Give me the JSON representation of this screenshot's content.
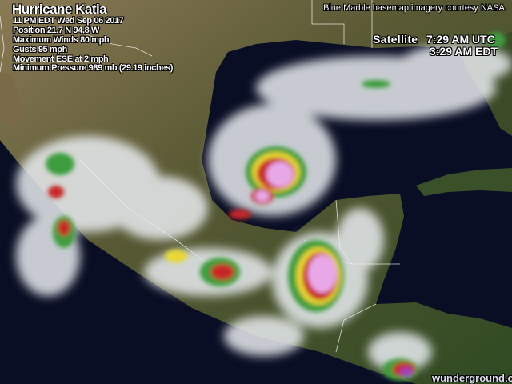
{
  "storm": {
    "title": "Hurricane Katia",
    "advisory_time": "11 PM EDT Wed Sep 06 2017",
    "position": "Position 21.7 N  94.8 W",
    "max_winds": "Maximum Winds  80 mph",
    "gusts": " Gusts  95 mph",
    "movement": "Movement ESE at 2 mph",
    "pressure": "Minimum Pressure 989 mb  (29.19 inches)"
  },
  "credit": "Blue Marble basemap imagery courtesy NASA",
  "satellite": {
    "label": "Satellite",
    "utc_time": "7:29 AM UTC",
    "edt_time": "3:29 AM EDT"
  },
  "watermark": "wunderground.com",
  "colors": {
    "ocean": "#0a0e24",
    "land": "#4b5230",
    "cloud": "#e8ecf0",
    "storm_core": "#e8a8e8",
    "storm_red": "#c82828",
    "storm_yellow": "#e8d830",
    "storm_green": "#3c9c3c"
  }
}
